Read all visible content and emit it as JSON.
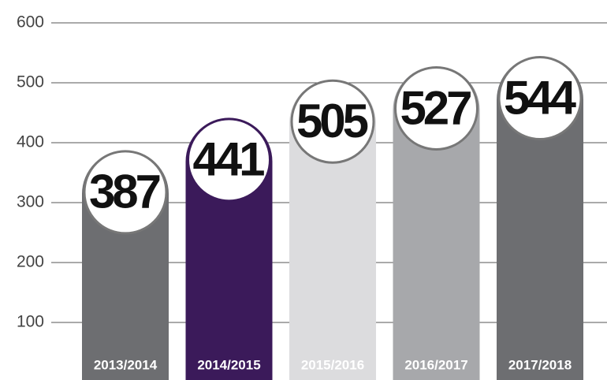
{
  "chart_data": {
    "type": "bar",
    "categories": [
      "2013/2014",
      "2014/2015",
      "2015/2016",
      "2016/2017",
      "2017/2018"
    ],
    "values": [
      387,
      441,
      505,
      527,
      544
    ],
    "colors": [
      "#6d6e71",
      "#3b1a5a",
      "#dcdcde",
      "#a7a8ab",
      "#6d6e71"
    ],
    "ylim": [
      0,
      600
    ],
    "yticks": [
      100,
      200,
      300,
      400,
      500,
      600
    ],
    "grid": true
  }
}
